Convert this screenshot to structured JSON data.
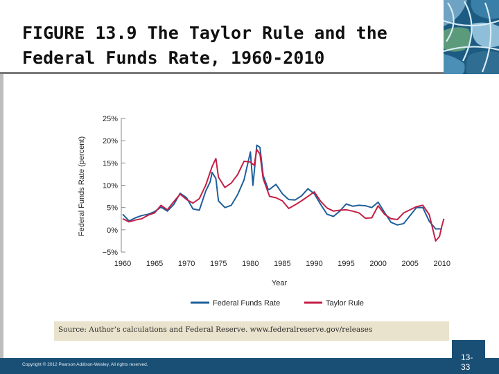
{
  "slide": {
    "title": "FIGURE 13.9  The Taylor Rule and the\nFederal Funds Rate, 1960-2010",
    "source": "Source: Author’s calculations and Federal Reserve. www.federalreserve.gov/releases",
    "copyright": "Copyright © 2012 Pearson Addison-Wesley. All rights reserved.",
    "page_number": "13-33"
  },
  "colors": {
    "fed_funds": "#1f5f9a",
    "taylor": "#c41f45",
    "axis": "#888888",
    "footer": "#1a4f75"
  },
  "chart_data": {
    "type": "line",
    "title": "",
    "xlabel": "Year",
    "ylabel": "Federal Funds Rate (percent)",
    "xlim": [
      1960,
      2011
    ],
    "ylim": [
      -5,
      25
    ],
    "x_ticks": [
      1960,
      1965,
      1970,
      1975,
      1980,
      1985,
      1990,
      1995,
      2000,
      2005,
      2010
    ],
    "x_tick_labels": [
      "1960",
      "1965",
      "1970",
      "1975",
      "1980",
      "1985",
      "1990",
      "1995",
      "2000",
      "2005",
      "2010"
    ],
    "y_ticks": [
      25,
      20,
      15,
      10,
      5,
      0,
      -5
    ],
    "y_tick_labels": [
      "25%",
      "20%",
      "15%",
      "10%",
      "5%",
      "0%",
      "−5%"
    ],
    "grid": false,
    "legend_position": "bottom",
    "series": [
      {
        "name": "Federal Funds Rate",
        "points": [
          [
            1960,
            3.5
          ],
          [
            1961,
            2.0
          ],
          [
            1962,
            2.7
          ],
          [
            1963,
            3.2
          ],
          [
            1964,
            3.5
          ],
          [
            1965,
            4.1
          ],
          [
            1966,
            5.1
          ],
          [
            1967,
            4.2
          ],
          [
            1968,
            5.7
          ],
          [
            1969,
            8.2
          ],
          [
            1970,
            7.2
          ],
          [
            1971,
            4.7
          ],
          [
            1972,
            4.4
          ],
          [
            1973,
            8.7
          ],
          [
            1973.7,
            10.8
          ],
          [
            1974,
            12.9
          ],
          [
            1974.6,
            11.5
          ],
          [
            1975,
            6.5
          ],
          [
            1976,
            5.0
          ],
          [
            1977,
            5.5
          ],
          [
            1978,
            7.9
          ],
          [
            1979,
            11.2
          ],
          [
            1980,
            17.5
          ],
          [
            1980.4,
            10.0
          ],
          [
            1980.8,
            16.0
          ],
          [
            1981,
            19.0
          ],
          [
            1981.5,
            18.5
          ],
          [
            1982,
            12.2
          ],
          [
            1982.8,
            9.0
          ],
          [
            1983,
            9.1
          ],
          [
            1984,
            10.2
          ],
          [
            1985,
            8.1
          ],
          [
            1986,
            6.8
          ],
          [
            1987,
            6.7
          ],
          [
            1988,
            7.6
          ],
          [
            1989,
            9.2
          ],
          [
            1990,
            8.1
          ],
          [
            1991,
            5.7
          ],
          [
            1992,
            3.5
          ],
          [
            1993,
            3.0
          ],
          [
            1994,
            4.2
          ],
          [
            1995,
            5.8
          ],
          [
            1996,
            5.3
          ],
          [
            1997,
            5.5
          ],
          [
            1998,
            5.4
          ],
          [
            1999,
            5.0
          ],
          [
            2000,
            6.2
          ],
          [
            2001,
            3.9
          ],
          [
            2002,
            1.7
          ],
          [
            2003,
            1.1
          ],
          [
            2004,
            1.4
          ],
          [
            2005,
            3.2
          ],
          [
            2006,
            5.0
          ],
          [
            2007,
            5.0
          ],
          [
            2008,
            1.9
          ],
          [
            2009,
            0.2
          ],
          [
            2010,
            0.2
          ]
        ]
      },
      {
        "name": "Taylor Rule",
        "points": [
          [
            1960,
            2.5
          ],
          [
            1961,
            1.8
          ],
          [
            1962,
            2.2
          ],
          [
            1963,
            2.5
          ],
          [
            1964,
            3.3
          ],
          [
            1965,
            3.8
          ],
          [
            1966,
            5.5
          ],
          [
            1967,
            4.5
          ],
          [
            1968,
            6.3
          ],
          [
            1969,
            8.0
          ],
          [
            1970,
            6.8
          ],
          [
            1971,
            6.0
          ],
          [
            1972,
            7.0
          ],
          [
            1973,
            10.0
          ],
          [
            1974,
            14.2
          ],
          [
            1974.6,
            16.0
          ],
          [
            1975,
            11.8
          ],
          [
            1976,
            9.5
          ],
          [
            1977,
            10.5
          ],
          [
            1978,
            12.4
          ],
          [
            1979,
            15.4
          ],
          [
            1980,
            15.2
          ],
          [
            1980.6,
            14.5
          ],
          [
            1981,
            18.0
          ],
          [
            1981.5,
            17.0
          ],
          [
            1982,
            11.5
          ],
          [
            1983,
            7.5
          ],
          [
            1984,
            7.2
          ],
          [
            1985,
            6.5
          ],
          [
            1986,
            4.8
          ],
          [
            1987,
            5.6
          ],
          [
            1988,
            6.5
          ],
          [
            1989,
            7.5
          ],
          [
            1990,
            8.5
          ],
          [
            1991,
            6.4
          ],
          [
            1992,
            4.9
          ],
          [
            1993,
            4.2
          ],
          [
            1994,
            4.4
          ],
          [
            1995,
            4.5
          ],
          [
            1996,
            4.2
          ],
          [
            1997,
            3.8
          ],
          [
            1998,
            2.6
          ],
          [
            1999,
            2.7
          ],
          [
            2000,
            5.4
          ],
          [
            2001,
            3.5
          ],
          [
            2002,
            2.5
          ],
          [
            2003,
            2.3
          ],
          [
            2004,
            3.8
          ],
          [
            2005,
            4.5
          ],
          [
            2006,
            5.2
          ],
          [
            2007,
            5.5
          ],
          [
            2008,
            3.4
          ],
          [
            2009,
            -2.5
          ],
          [
            2009.6,
            -1.5
          ],
          [
            2010,
            1.0
          ],
          [
            2010.3,
            2.5
          ]
        ]
      }
    ]
  }
}
